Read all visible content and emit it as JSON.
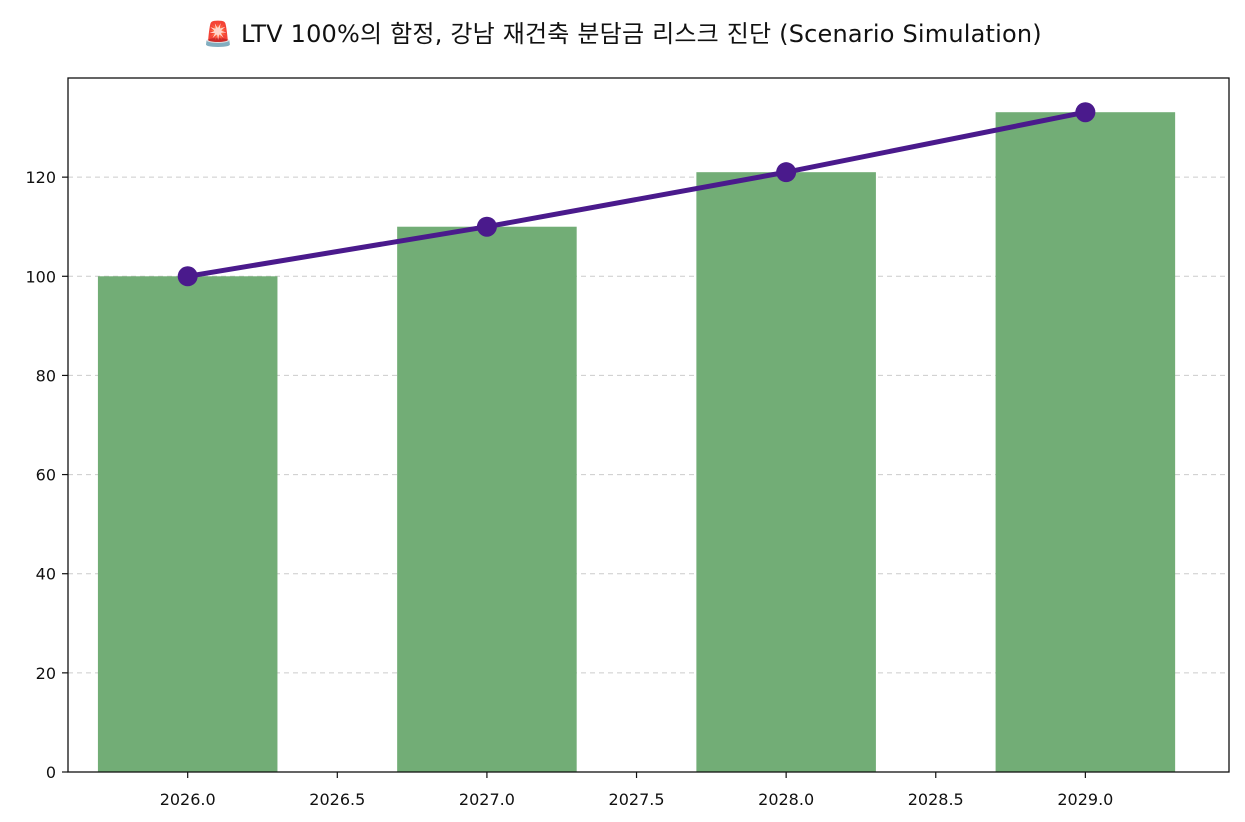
{
  "colors": {
    "bar": "#72ad76",
    "line": "#4a1a8c",
    "grid": "#cccccc",
    "axis": "#111111"
  },
  "chart_data": {
    "type": "bar",
    "title": "🚨 LTV 100%의 함정, 강남 재건축 분담금 리스크 진단 (Scenario Simulation)",
    "xlabel": "",
    "ylabel": "",
    "x": [
      2026.0,
      2027.0,
      2028.0,
      2029.0
    ],
    "series": [
      {
        "type": "bar",
        "values": [
          100,
          110,
          121,
          133.1
        ]
      },
      {
        "type": "line",
        "markers": true,
        "values": [
          100,
          110,
          121,
          133.1
        ]
      }
    ],
    "bar_width": 0.6,
    "xlim": [
      2025.6,
      2029.48
    ],
    "ylim": [
      0,
      140
    ],
    "xticks": [
      "2026.0",
      "2026.5",
      "2027.0",
      "2027.5",
      "2028.0",
      "2028.5",
      "2029.0"
    ],
    "yticks": [
      "0",
      "20",
      "40",
      "60",
      "80",
      "100",
      "120"
    ],
    "grid": "horizontal dashed",
    "legend": "none"
  }
}
